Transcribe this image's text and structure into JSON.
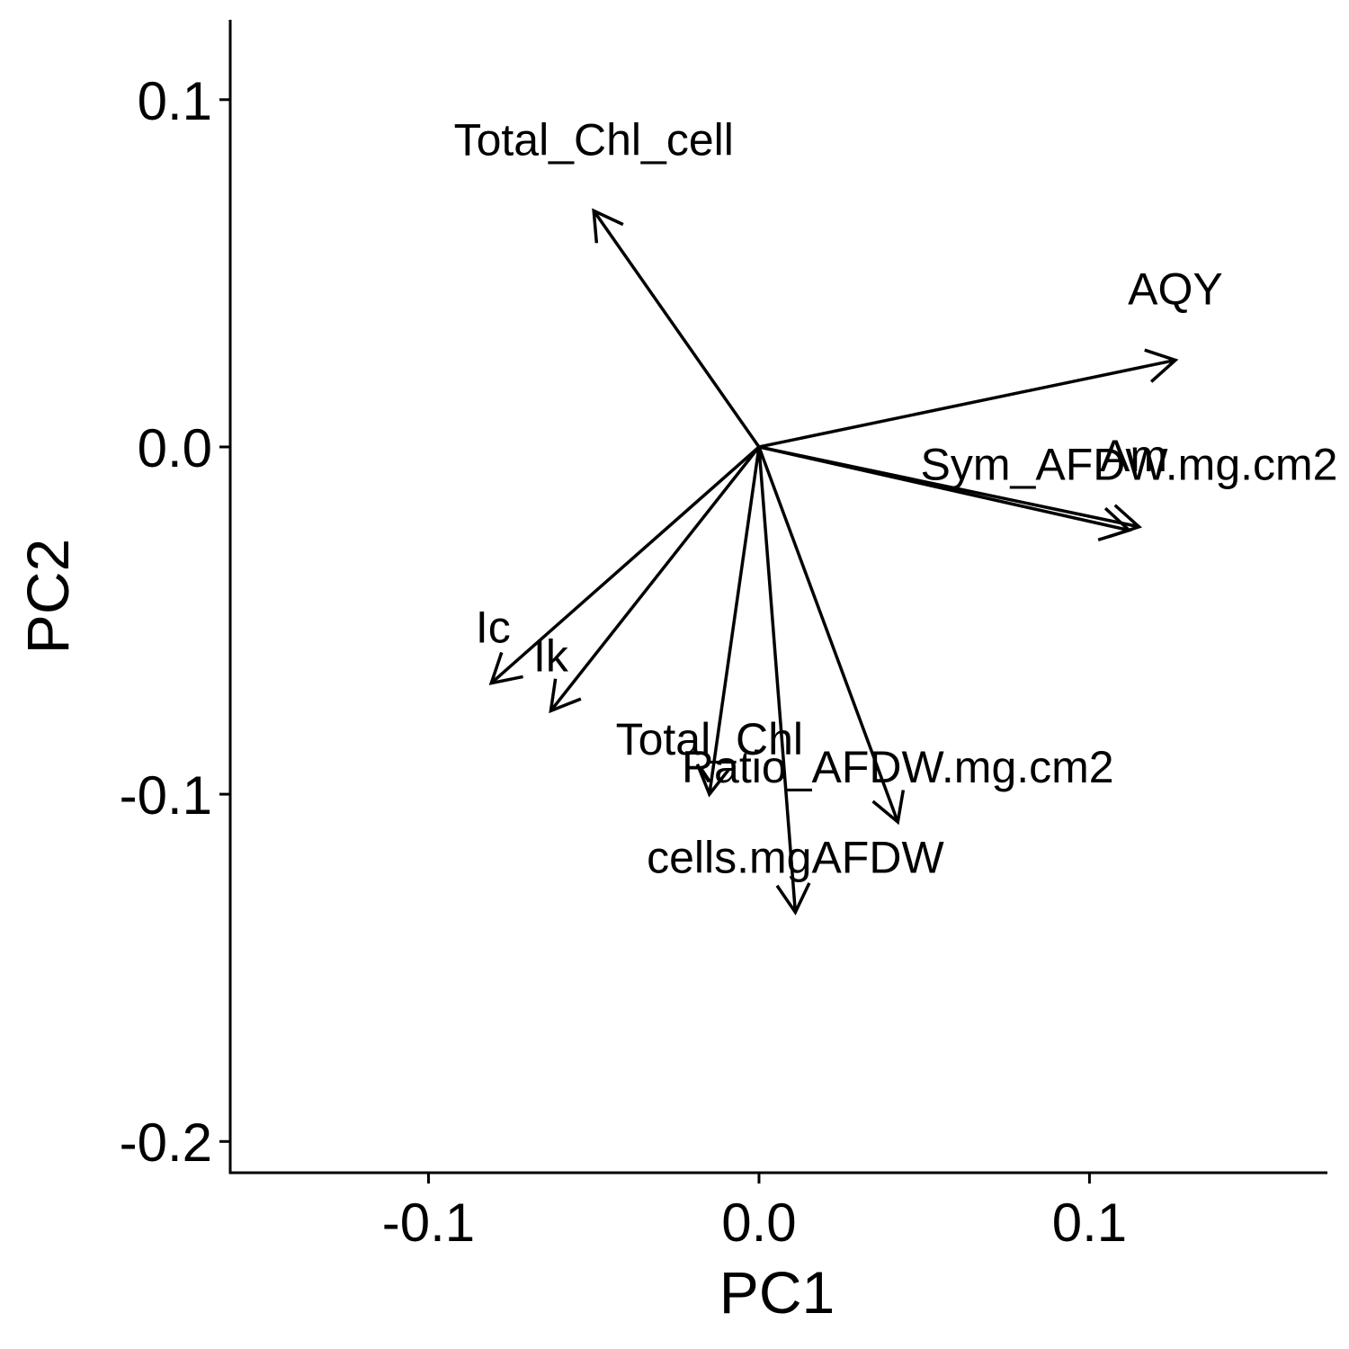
{
  "chart_data": {
    "type": "scatter",
    "subtype": "pca-loadings-biplot",
    "title": "",
    "xlabel": "PC1",
    "ylabel": "PC2",
    "xlim": [
      -0.16,
      0.172
    ],
    "ylim": [
      -0.209,
      0.123
    ],
    "x_ticks": [
      -0.1,
      0.0,
      0.1
    ],
    "x_tick_labels": [
      "-0.1",
      "0.0",
      "0.1"
    ],
    "y_ticks": [
      -0.2,
      -0.1,
      0.0,
      0.1
    ],
    "y_tick_labels": [
      "-0.2",
      "-0.1",
      "0.0",
      "0.1"
    ],
    "grid": false,
    "legend": "none",
    "color": "#000000",
    "vectors": [
      {
        "name": "Total_Chl_cell",
        "x": -0.05,
        "y": 0.068
      },
      {
        "name": "AQY",
        "x": 0.126,
        "y": 0.025
      },
      {
        "name": "Sym_AFDW.mg.cm2",
        "x": 0.112,
        "y": -0.024
      },
      {
        "name": "Am",
        "x": 0.115,
        "y": -0.023
      },
      {
        "name": "Ic",
        "x": -0.081,
        "y": -0.068
      },
      {
        "name": "Ik",
        "x": -0.063,
        "y": -0.076
      },
      {
        "name": "Total_Chl",
        "x": -0.015,
        "y": -0.1
      },
      {
        "name": "Ratio_AFDW.mg.cm2",
        "x": 0.042,
        "y": -0.108
      },
      {
        "name": "cells.mgAFDW",
        "x": 0.011,
        "y": -0.134
      }
    ]
  }
}
